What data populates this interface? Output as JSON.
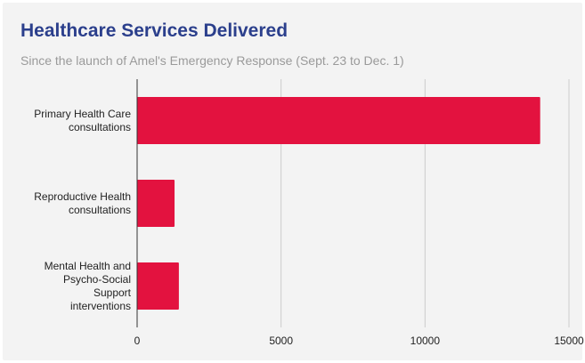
{
  "chart_data": {
    "type": "bar",
    "orientation": "horizontal",
    "title": "Healthcare Services Delivered",
    "subtitle": "Since the launch of Amel's Emergency Response (Sept. 23 to Dec. 1)",
    "categories": [
      [
        "Primary Health Care",
        "consultations"
      ],
      [
        "Reproductive Health",
        "consultations"
      ],
      [
        "Mental Health and",
        "Psycho-Social",
        "Support",
        "interventions"
      ]
    ],
    "values": [
      14000,
      1300,
      1450
    ],
    "xlim": [
      0,
      15000
    ],
    "ticks": [
      "0",
      "5000",
      "10000",
      "15000"
    ],
    "tick_values": [
      0,
      5000,
      10000,
      15000
    ],
    "xlabel": "",
    "ylabel": "",
    "grid": true,
    "bar_color": "#e3123f",
    "title_color": "#2b3f8c"
  }
}
